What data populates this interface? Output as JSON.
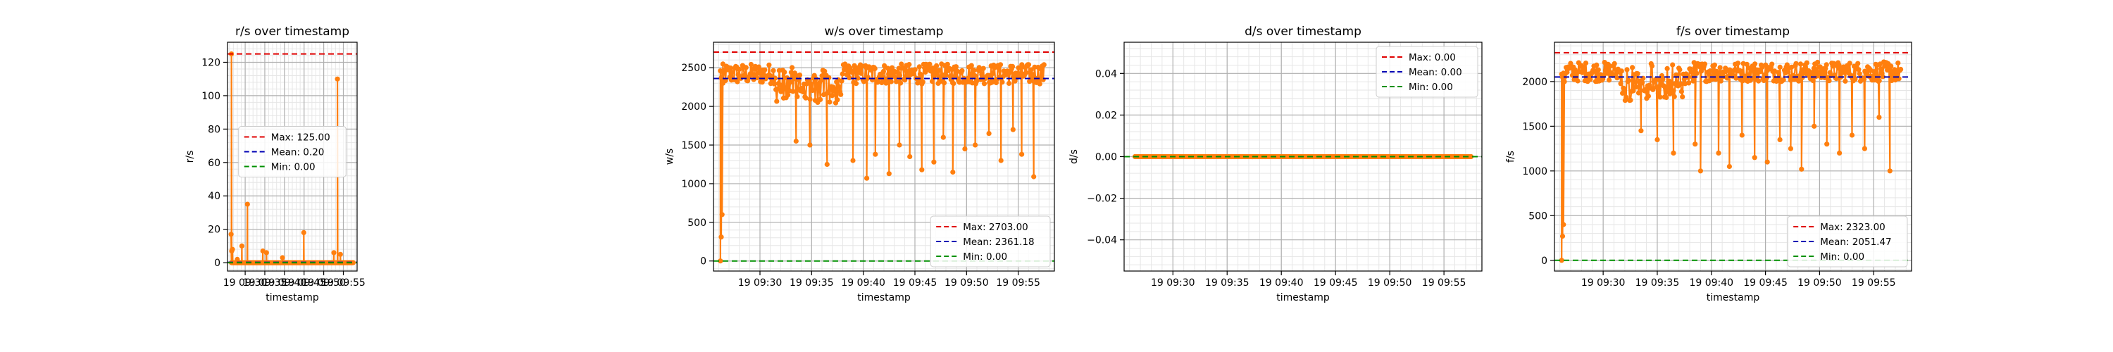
{
  "colors": {
    "line": "#ff7f0e",
    "max": "#e00000",
    "mean": "#0000b4",
    "min": "#009000",
    "grid_major": "#b0b0b0",
    "grid_minor": "#e6e6e6"
  },
  "chart_data": [
    {
      "type": "line",
      "title": "r/s over timestamp",
      "xlabel": "timestamp",
      "ylabel": "r/s",
      "ylim": [
        -5,
        132
      ],
      "yticks": [
        0,
        20,
        40,
        60,
        80,
        100,
        120
      ],
      "ytick_labels": [
        "0",
        "20",
        "40",
        "60",
        "80",
        "100",
        "120"
      ],
      "xlim": [
        "2024-09-19 09:25:30",
        "2024-09-19 09:58:30"
      ],
      "xticks": [
        "2024-09-19 09:30",
        "2024-09-19 09:35",
        "2024-09-19 09:40",
        "2024-09-19 09:45",
        "2024-09-19 09:50",
        "2024-09-19 09:55"
      ],
      "xtick_labels": [
        "19 09:30",
        "19 09:35",
        "19 09:40",
        "19 09:45",
        "19 09:50",
        "19 09:55"
      ],
      "series": {
        "start": "2024-09-19 09:26:30",
        "end": "2024-09-19 09:57:30",
        "count": 380,
        "base": 0,
        "noise": 0,
        "dips": [],
        "drops": [],
        "spikes": [
          {
            "t": "2024-09-19 09:26:25",
            "v": 17
          },
          {
            "t": "2024-09-19 09:26:30",
            "v": 125
          },
          {
            "t": "2024-09-19 09:26:35",
            "v": 7
          },
          {
            "t": "2024-09-19 09:26:45",
            "v": 8
          },
          {
            "t": "2024-09-19 09:28:00",
            "v": 2
          },
          {
            "t": "2024-09-19 09:29:10",
            "v": 10
          },
          {
            "t": "2024-09-19 09:30:35",
            "v": 35
          },
          {
            "t": "2024-09-19 09:34:30",
            "v": 7
          },
          {
            "t": "2024-09-19 09:35:25",
            "v": 6
          },
          {
            "t": "2024-09-19 09:39:30",
            "v": 3
          },
          {
            "t": "2024-09-19 09:44:55",
            "v": 18
          },
          {
            "t": "2024-09-19 09:52:35",
            "v": 6
          },
          {
            "t": "2024-09-19 09:53:30",
            "v": 110
          },
          {
            "t": "2024-09-19 09:54:15",
            "v": 5
          }
        ]
      },
      "ref_lines": {
        "max": 125.0,
        "mean": 0.2,
        "min": 0.0
      },
      "legend": {
        "loc": "center",
        "entries": [
          "Max: 125.00",
          "Mean: 0.20",
          "Min: 0.00"
        ]
      }
    },
    {
      "type": "line",
      "title": "w/s over timestamp",
      "xlabel": "timestamp",
      "ylabel": "w/s",
      "ylim": [
        -130,
        2830
      ],
      "yticks": [
        0,
        500,
        1000,
        1500,
        2000,
        2500
      ],
      "ytick_labels": [
        "0",
        "500",
        "1000",
        "1500",
        "2000",
        "2500"
      ],
      "xlim": [
        "2024-09-19 09:25:30",
        "2024-09-19 09:58:30"
      ],
      "xticks": [
        "2024-09-19 09:30",
        "2024-09-19 09:35",
        "2024-09-19 09:40",
        "2024-09-19 09:45",
        "2024-09-19 09:50",
        "2024-09-19 09:55"
      ],
      "xtick_labels": [
        "19 09:30",
        "19 09:35",
        "19 09:40",
        "19 09:45",
        "19 09:50",
        "19 09:55"
      ],
      "series": {
        "start": "2024-09-19 09:26:10",
        "end": "2024-09-19 09:57:30",
        "count": 380,
        "base": 2420,
        "noise": 130,
        "dips": [
          {
            "from": "2024-09-19 09:31:30",
            "to": "2024-09-19 09:38:00",
            "depth": 350
          }
        ],
        "drops": [
          {
            "t": "2024-09-19 09:33:30",
            "v": 1550
          },
          {
            "t": "2024-09-19 09:34:50",
            "v": 1500
          },
          {
            "t": "2024-09-19 09:36:30",
            "v": 1250
          },
          {
            "t": "2024-09-19 09:39:00",
            "v": 1300
          },
          {
            "t": "2024-09-19 09:40:20",
            "v": 1070
          },
          {
            "t": "2024-09-19 09:41:10",
            "v": 1380
          },
          {
            "t": "2024-09-19 09:42:30",
            "v": 1130
          },
          {
            "t": "2024-09-19 09:43:30",
            "v": 1500
          },
          {
            "t": "2024-09-19 09:44:30",
            "v": 1350
          },
          {
            "t": "2024-09-19 09:45:40",
            "v": 1180
          },
          {
            "t": "2024-09-19 09:46:50",
            "v": 1280
          },
          {
            "t": "2024-09-19 09:47:45",
            "v": 1600
          },
          {
            "t": "2024-09-19 09:48:40",
            "v": 1150
          },
          {
            "t": "2024-09-19 09:49:50",
            "v": 1450
          },
          {
            "t": "2024-09-19 09:50:50",
            "v": 1500
          },
          {
            "t": "2024-09-19 09:52:10",
            "v": 1650
          },
          {
            "t": "2024-09-19 09:53:20",
            "v": 1300
          },
          {
            "t": "2024-09-19 09:54:30",
            "v": 1700
          },
          {
            "t": "2024-09-19 09:55:20",
            "v": 1380
          },
          {
            "t": "2024-09-19 09:56:30",
            "v": 1090
          }
        ],
        "spikes": [
          {
            "t": "2024-09-19 09:26:10",
            "v": 0
          },
          {
            "t": "2024-09-19 09:26:15",
            "v": 310
          },
          {
            "t": "2024-09-19 09:26:20",
            "v": 600
          },
          {
            "t": "2024-09-19 09:26:25",
            "v": 2300
          }
        ]
      },
      "ref_lines": {
        "max": 2703.0,
        "mean": 2361.18,
        "min": 0.0
      },
      "legend": {
        "loc": "lower right",
        "entries": [
          "Max: 2703.00",
          "Mean: 2361.18",
          "Min: 0.00"
        ]
      }
    },
    {
      "type": "line",
      "title": "d/s over timestamp",
      "xlabel": "timestamp",
      "ylabel": "d/s",
      "ylim": [
        -0.055,
        0.055
      ],
      "yticks": [
        -0.04,
        -0.02,
        0,
        0.02,
        0.04
      ],
      "ytick_labels": [
        "−0.04",
        "−0.02",
        "0.00",
        "0.02",
        "0.04"
      ],
      "xlim": [
        "2024-09-19 09:25:30",
        "2024-09-19 09:58:30"
      ],
      "xticks": [
        "2024-09-19 09:30",
        "2024-09-19 09:35",
        "2024-09-19 09:40",
        "2024-09-19 09:45",
        "2024-09-19 09:50",
        "2024-09-19 09:55"
      ],
      "xtick_labels": [
        "19 09:30",
        "19 09:35",
        "19 09:40",
        "19 09:45",
        "19 09:50",
        "19 09:55"
      ],
      "series": {
        "start": "2024-09-19 09:26:30",
        "end": "2024-09-19 09:57:30",
        "count": 380,
        "base": 0,
        "noise": 0,
        "dips": [],
        "drops": [],
        "spikes": []
      },
      "ref_lines": {
        "max": 0.0,
        "mean": 0.0,
        "min": 0.0
      },
      "legend": {
        "loc": "upper right",
        "entries": [
          "Max: 0.00",
          "Mean: 0.00",
          "Min: 0.00"
        ]
      }
    },
    {
      "type": "line",
      "title": "f/s over timestamp",
      "xlabel": "timestamp",
      "ylabel": "f/s",
      "ylim": [
        -120,
        2440
      ],
      "yticks": [
        0,
        500,
        1000,
        1500,
        2000
      ],
      "ytick_labels": [
        "0",
        "500",
        "1000",
        "1500",
        "2000"
      ],
      "xlim": [
        "2024-09-19 09:25:30",
        "2024-09-19 09:58:30"
      ],
      "xticks": [
        "2024-09-19 09:30",
        "2024-09-19 09:35",
        "2024-09-19 09:40",
        "2024-09-19 09:45",
        "2024-09-19 09:50",
        "2024-09-19 09:55"
      ],
      "xtick_labels": [
        "19 09:30",
        "19 09:35",
        "19 09:40",
        "19 09:45",
        "19 09:50",
        "19 09:55"
      ],
      "series": {
        "start": "2024-09-19 09:26:10",
        "end": "2024-09-19 09:57:30",
        "count": 380,
        "base": 2110,
        "noise": 110,
        "dips": [
          {
            "from": "2024-09-19 09:31:30",
            "to": "2024-09-19 09:38:00",
            "depth": 300
          }
        ],
        "drops": [
          {
            "t": "2024-09-19 09:33:30",
            "v": 1450
          },
          {
            "t": "2024-09-19 09:35:00",
            "v": 1350
          },
          {
            "t": "2024-09-19 09:36:30",
            "v": 1200
          },
          {
            "t": "2024-09-19 09:38:30",
            "v": 1300
          },
          {
            "t": "2024-09-19 09:39:00",
            "v": 1000
          },
          {
            "t": "2024-09-19 09:40:40",
            "v": 1200
          },
          {
            "t": "2024-09-19 09:41:40",
            "v": 1050
          },
          {
            "t": "2024-09-19 09:42:50",
            "v": 1400
          },
          {
            "t": "2024-09-19 09:44:00",
            "v": 1150
          },
          {
            "t": "2024-09-19 09:45:10",
            "v": 1100
          },
          {
            "t": "2024-09-19 09:46:20",
            "v": 1350
          },
          {
            "t": "2024-09-19 09:47:20",
            "v": 1250
          },
          {
            "t": "2024-09-19 09:48:20",
            "v": 1020
          },
          {
            "t": "2024-09-19 09:49:30",
            "v": 1500
          },
          {
            "t": "2024-09-19 09:50:40",
            "v": 1300
          },
          {
            "t": "2024-09-19 09:51:50",
            "v": 1200
          },
          {
            "t": "2024-09-19 09:53:00",
            "v": 1400
          },
          {
            "t": "2024-09-19 09:54:10",
            "v": 1250
          },
          {
            "t": "2024-09-19 09:55:30",
            "v": 1600
          },
          {
            "t": "2024-09-19 09:56:30",
            "v": 1000
          }
        ],
        "spikes": [
          {
            "t": "2024-09-19 09:26:10",
            "v": 0
          },
          {
            "t": "2024-09-19 09:26:15",
            "v": 270
          },
          {
            "t": "2024-09-19 09:26:20",
            "v": 400
          },
          {
            "t": "2024-09-19 09:26:25",
            "v": 2000
          }
        ]
      },
      "ref_lines": {
        "max": 2323.0,
        "mean": 2051.47,
        "min": 0.0
      },
      "legend": {
        "loc": "lower right",
        "entries": [
          "Max: 2323.00",
          "Mean: 2051.47",
          "Min: 0.00"
        ]
      }
    }
  ]
}
